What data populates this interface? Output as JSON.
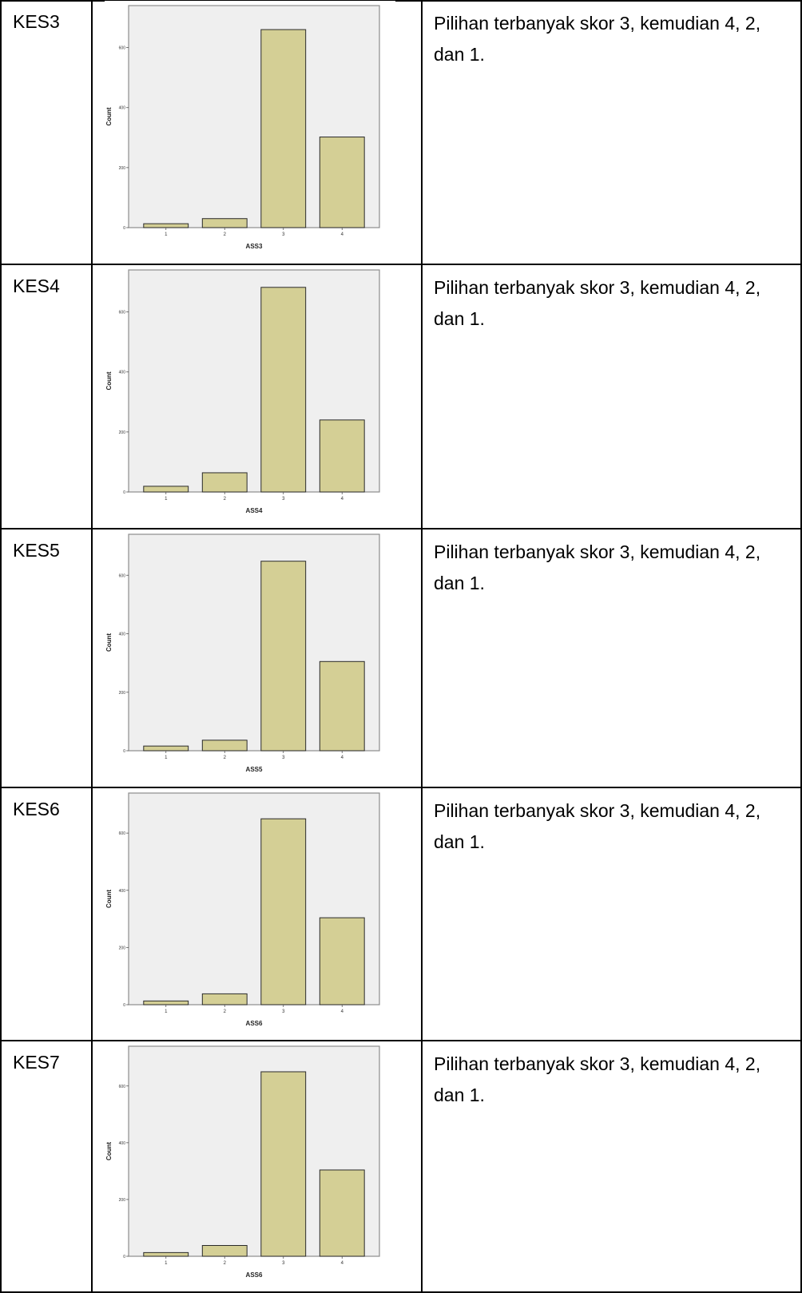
{
  "rows": [
    {
      "id": "KES3",
      "description": "Pilihan terbanyak skor 3, kemudian 4, 2, dan 1.",
      "chart_data": {
        "type": "bar",
        "categories": [
          "1",
          "2",
          "3",
          "4"
        ],
        "values": [
          13,
          30,
          660,
          302
        ],
        "xlabel": "ASS3",
        "ylabel": "Count",
        "ylim": [
          0,
          740
        ],
        "yticks": [
          0,
          200,
          400,
          600
        ],
        "grid": false
      }
    },
    {
      "id": "KES4",
      "description": "Pilihan terbanyak skor 3, kemudian 4, 2, dan 1.",
      "chart_data": {
        "type": "bar",
        "categories": [
          "1",
          "2",
          "3",
          "4"
        ],
        "values": [
          19,
          64,
          682,
          240
        ],
        "xlabel": "ASS4",
        "ylabel": "Count",
        "ylim": [
          0,
          740
        ],
        "yticks": [
          0,
          200,
          400,
          600
        ],
        "grid": false
      }
    },
    {
      "id": "KES5",
      "description": "Pilihan terbanyak skor 3, kemudian 4, 2, dan 1.",
      "chart_data": {
        "type": "bar",
        "categories": [
          "1",
          "2",
          "3",
          "4"
        ],
        "values": [
          16,
          36,
          648,
          305
        ],
        "xlabel": "ASS5",
        "ylabel": "Count",
        "ylim": [
          0,
          740
        ],
        "yticks": [
          0,
          200,
          400,
          600
        ],
        "grid": false
      }
    },
    {
      "id": "KES6",
      "description": "Pilihan terbanyak skor 3, kemudian 4, 2, dan 1.",
      "chart_data": {
        "type": "bar",
        "categories": [
          "1",
          "2",
          "3",
          "4"
        ],
        "values": [
          13,
          38,
          650,
          304
        ],
        "xlabel": "ASS6",
        "ylabel": "Count",
        "ylim": [
          0,
          740
        ],
        "yticks": [
          0,
          200,
          400,
          600
        ],
        "grid": false
      }
    },
    {
      "id": "KES7",
      "description": "Pilihan terbanyak skor 3, kemudian 4, 2, dan 1.",
      "chart_data": {
        "type": "bar",
        "categories": [
          "1",
          "2",
          "3",
          "4"
        ],
        "values": [
          13,
          38,
          650,
          304
        ],
        "xlabel": "ASS6",
        "ylabel": "Count",
        "ylim": [
          0,
          740
        ],
        "yticks": [
          0,
          200,
          400,
          600
        ],
        "grid": false
      }
    }
  ]
}
